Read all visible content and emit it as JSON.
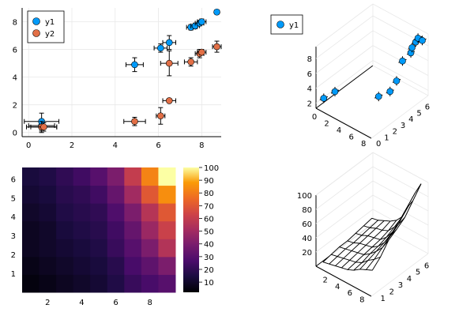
{
  "colors": {
    "y1": "#009af9",
    "y2": "#e26f46",
    "grid": "#e8e8e8",
    "axis": "#000000"
  },
  "chart_data": [
    {
      "type": "scatter",
      "title": "",
      "xlabel": "",
      "ylabel": "",
      "xlim": [
        -0.3,
        8.9
      ],
      "ylim": [
        -0.3,
        9.0
      ],
      "xticks": [
        0,
        2,
        4,
        6,
        8
      ],
      "yticks": [
        0,
        2,
        4,
        6,
        8
      ],
      "grid": true,
      "legend_position": "top-left",
      "series": [
        {
          "name": "y1",
          "x": [
            0.6,
            0.6,
            4.9,
            6.1,
            6.5,
            7.5,
            7.7,
            7.9,
            8.0,
            8.7
          ],
          "y": [
            0.5,
            0.8,
            4.9,
            6.1,
            6.5,
            7.6,
            7.7,
            7.9,
            8.0,
            8.7
          ],
          "xerr": [
            0.6,
            0.8,
            0.4,
            0.3,
            0.3,
            0.2,
            0.2,
            0.2,
            0.2,
            0.1
          ],
          "yerr": [
            0.4,
            0.6,
            0.5,
            0.3,
            0.5,
            0.2,
            0.2,
            0.2,
            0.2,
            0.1
          ]
        },
        {
          "name": "y2",
          "x": [
            0.6,
            0.7,
            4.9,
            6.1,
            6.5,
            6.5,
            7.5,
            7.9,
            8.0,
            8.7
          ],
          "y": [
            0.4,
            0.4,
            0.8,
            1.2,
            2.3,
            5.0,
            5.1,
            5.7,
            5.8,
            6.2
          ],
          "xerr": [
            0.7,
            0.6,
            0.5,
            0.2,
            0.3,
            0.4,
            0.3,
            0.2,
            0.2,
            0.2
          ],
          "yerr": [
            0.4,
            0.3,
            0.3,
            0.6,
            0.1,
            0.9,
            0.3,
            0.3,
            0.2,
            0.4
          ]
        }
      ]
    },
    {
      "type": "scatter3d",
      "title": "",
      "series": [
        {
          "name": "y1",
          "x": [
            0.6,
            1.1,
            4.9,
            6.1,
            6.5,
            6.8,
            7.5,
            7.7,
            7.9,
            8.0,
            8.7
          ],
          "y": [
            0.5,
            1.5,
            4.0,
            4.5,
            5.0,
            5.5,
            6.0,
            6.0,
            6.3,
            6.5,
            6.5
          ],
          "z": [
            2.5,
            2.8,
            1.8,
            2.6,
            3.8,
            6.2,
            7.2,
            8.0,
            8.6,
            9.0,
            9.0
          ]
        }
      ],
      "x_ticks": [
        0,
        2,
        4,
        6,
        8
      ],
      "y_ticks": [
        0,
        1,
        2,
        3,
        4,
        5,
        6
      ],
      "z_ticks": [
        2,
        4,
        6,
        8
      ],
      "legend_position": "top-left"
    },
    {
      "type": "heatmap",
      "title": "",
      "x_centers": [
        1,
        2,
        3,
        4,
        5,
        6,
        7,
        8,
        9
      ],
      "xticks": [
        2,
        4,
        6,
        8
      ],
      "yticks": [
        1,
        2,
        3,
        4,
        5,
        6
      ],
      "values": [
        [
          4,
          6,
          8,
          10,
          12,
          16,
          22,
          26,
          30
        ],
        [
          6,
          8,
          10,
          12,
          14,
          18,
          26,
          32,
          40
        ],
        [
          8,
          10,
          12,
          14,
          16,
          22,
          30,
          40,
          55
        ],
        [
          8,
          10,
          14,
          16,
          18,
          24,
          34,
          48,
          62
        ],
        [
          10,
          12,
          16,
          18,
          20,
          28,
          40,
          56,
          70
        ],
        [
          12,
          14,
          18,
          20,
          24,
          34,
          50,
          70,
          85
        ],
        [
          14,
          16,
          20,
          24,
          30,
          40,
          60,
          82,
          100
        ]
      ],
      "colorbar_ticks": [
        10,
        20,
        30,
        40,
        50,
        60,
        70,
        80,
        90,
        100
      ],
      "clim": [
        2,
        100
      ]
    },
    {
      "type": "surface",
      "title": "",
      "x_ticks": [
        2,
        4,
        6,
        8
      ],
      "y_ticks": [
        1,
        2,
        3,
        4,
        5,
        6
      ],
      "z_ticks": [
        20,
        40,
        60,
        80,
        100
      ],
      "zlim": [
        0,
        100
      ]
    }
  ]
}
